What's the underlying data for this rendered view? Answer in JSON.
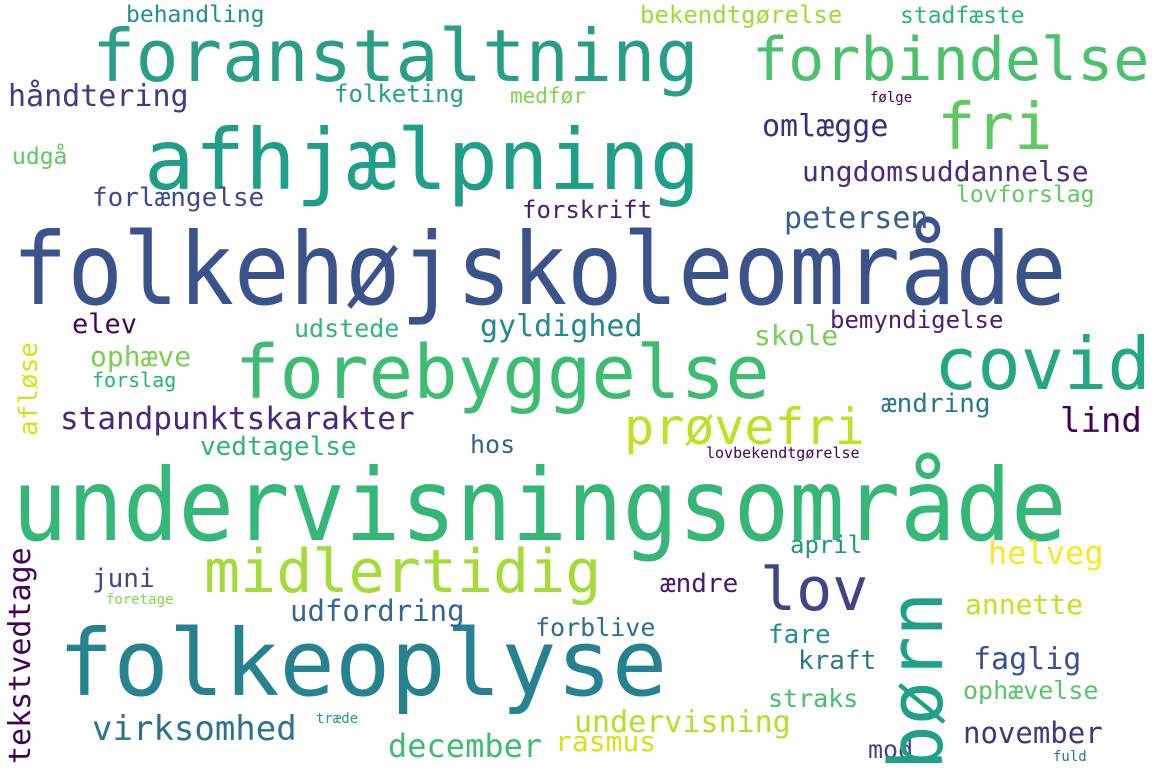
{
  "words": [
    {
      "text": "folkehøjskoleområde",
      "color": "#3b528b"
    },
    {
      "text": "undervisningsområde",
      "color": "#35b779"
    },
    {
      "text": "folkeoplyse",
      "color": "#26828e"
    },
    {
      "text": "afhjælpning",
      "color": "#1f9e89"
    },
    {
      "text": "foranstaltning",
      "color": "#2a9f87"
    },
    {
      "text": "forebyggelse",
      "color": "#3fbc73"
    },
    {
      "text": "forbindelse",
      "color": "#4ac16d"
    },
    {
      "text": "midlertidig",
      "color": "#a5db36"
    },
    {
      "text": "børn",
      "color": "#1fa088"
    },
    {
      "text": "covid",
      "color": "#22a884"
    },
    {
      "text": "fri",
      "color": "#5ec962"
    },
    {
      "text": "lov",
      "color": "#414487"
    },
    {
      "text": "prøvefri",
      "color": "#c2df23"
    },
    {
      "text": "standpunktskarakter",
      "color": "#482878"
    },
    {
      "text": "virksomhed",
      "color": "#2c728e"
    },
    {
      "text": "december",
      "color": "#3dbc74"
    },
    {
      "text": "undervisning",
      "color": "#b5de2b"
    },
    {
      "text": "rasmus",
      "color": "#d8e219"
    },
    {
      "text": "udfordring",
      "color": "#31688e"
    },
    {
      "text": "tekstvedtage",
      "color": "#440154"
    },
    {
      "text": "håndtering",
      "color": "#443983"
    },
    {
      "text": "omlægge",
      "color": "#3e2f7e"
    },
    {
      "text": "ungdomsuddannelse",
      "color": "#472d7b"
    },
    {
      "text": "helveg",
      "color": "#fde725"
    },
    {
      "text": "november",
      "color": "#46337e"
    },
    {
      "text": "petersen",
      "color": "#355f8d"
    },
    {
      "text": "gyldighed",
      "color": "#23898e"
    },
    {
      "text": "forskrift",
      "color": "#481f70"
    },
    {
      "text": "forlængelse",
      "color": "#3e4c8a"
    },
    {
      "text": "lind",
      "color": "#440154"
    },
    {
      "text": "faglig",
      "color": "#3b528b"
    },
    {
      "text": "annette",
      "color": "#c8e020"
    },
    {
      "text": "ophævelse",
      "color": "#56c667"
    },
    {
      "text": "ophæve",
      "color": "#7ad151"
    },
    {
      "text": "udstede",
      "color": "#2fb47c"
    },
    {
      "text": "elev",
      "color": "#440154"
    },
    {
      "text": "skole",
      "color": "#75d054"
    },
    {
      "text": "bemyndigelse",
      "color": "#482173"
    },
    {
      "text": "ændring",
      "color": "#2a788e"
    },
    {
      "text": "vedtagelse",
      "color": "#2fb47c"
    },
    {
      "text": "hos",
      "color": "#33638d"
    },
    {
      "text": "juni",
      "color": "#3e4989"
    },
    {
      "text": "ændre",
      "color": "#481a6c"
    },
    {
      "text": "forblive",
      "color": "#2d708e"
    },
    {
      "text": "fare",
      "color": "#21918c"
    },
    {
      "text": "kraft",
      "color": "#2a788e"
    },
    {
      "text": "straks",
      "color": "#44bf70"
    },
    {
      "text": "mod",
      "color": "#3f4788"
    },
    {
      "text": "april",
      "color": "#1f968b"
    },
    {
      "text": "behandling",
      "color": "#21908d"
    },
    {
      "text": "bekendtgørelse",
      "color": "#a0da39"
    },
    {
      "text": "stadfæste",
      "color": "#2db27d"
    },
    {
      "text": "folketing",
      "color": "#20a386"
    },
    {
      "text": "medfør",
      "color": "#7fd34e"
    },
    {
      "text": "følge",
      "color": "#440154"
    },
    {
      "text": "udgå",
      "color": "#5ec962"
    },
    {
      "text": "lovforslag",
      "color": "#5ec962"
    },
    {
      "text": "afløse",
      "color": "#d8e219"
    },
    {
      "text": "forslag",
      "color": "#29af7f"
    },
    {
      "text": "lovbekendtgørelse",
      "color": "#440154"
    },
    {
      "text": "foretage",
      "color": "#86d549"
    },
    {
      "text": "træde",
      "color": "#1f9e89"
    },
    {
      "text": "fuld",
      "color": "#2c728e"
    }
  ]
}
